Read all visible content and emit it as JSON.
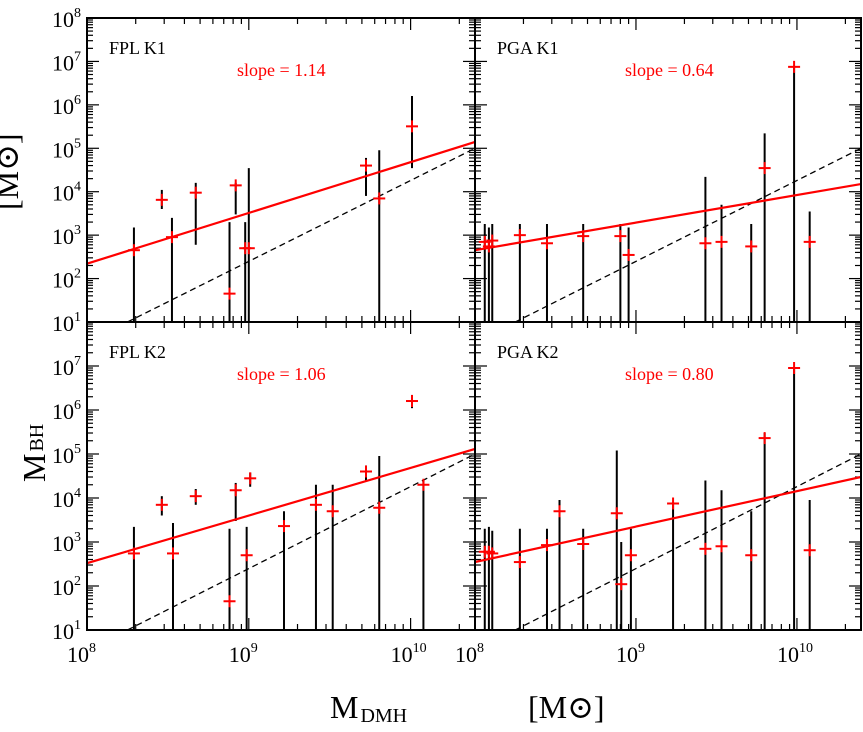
{
  "figure": {
    "ylabel_main": "M",
    "ylabel_sub": "BH",
    "yunit": "[M⊙]",
    "xlabel_main": "M",
    "xlabel_sub": "DMH",
    "xunit": "[M⊙]"
  },
  "colors": {
    "fit": "#ff0000",
    "data": "#ff0000",
    "errorbar": "#000000",
    "reference": "#000000"
  },
  "chart_data": [
    {
      "type": "scatter",
      "title": "FPL K1",
      "annotation": "slope = 1.14",
      "xscale": "log",
      "yscale": "log",
      "xlim": [
        100000000.0,
        25000000000.0
      ],
      "ylim": [
        10,
        100000000.0
      ],
      "fit": {
        "slope": 1.14,
        "points": [
          [
            100000000.0,
            220
          ],
          [
            25000000000.0,
            140000.0
          ]
        ]
      },
      "reference": {
        "points": [
          [
            178000000.0,
            10
          ],
          [
            25000000000.0,
            100000.0
          ]
        ]
      },
      "points": [
        {
          "x": 195000000.0,
          "y": 450,
          "ylo": 10,
          "yhi": 1500
        },
        {
          "x": 290000000.0,
          "y": 6500,
          "ylo": 4000,
          "yhi": 11000
        },
        {
          "x": 335000000.0,
          "y": 900,
          "ylo": 10,
          "yhi": 2500
        },
        {
          "x": 470000000.0,
          "y": 9500,
          "ylo": 600,
          "yhi": 16000
        },
        {
          "x": 760000000.0,
          "y": 45,
          "ylo": 10,
          "yhi": 2000
        },
        {
          "x": 830000000.0,
          "y": 14000,
          "ylo": 3000,
          "yhi": 16000
        },
        {
          "x": 950000000.0,
          "y": 500,
          "ylo": 10,
          "yhi": 2000
        },
        {
          "x": 1000000000.0,
          "y": 500,
          "ylo": 10,
          "yhi": 35000
        },
        {
          "x": 5300000000.0,
          "y": 40000,
          "ylo": 8000,
          "yhi": 60000
        },
        {
          "x": 6400000000.0,
          "y": 7000,
          "ylo": 10,
          "yhi": 90000
        },
        {
          "x": 10200000000.0,
          "y": 320000,
          "ylo": 35000,
          "yhi": 1600000
        }
      ]
    },
    {
      "type": "scatter",
      "title": "PGA K1",
      "annotation": "slope = 0.64",
      "xscale": "log",
      "yscale": "log",
      "xlim": [
        100000000.0,
        25000000000.0
      ],
      "ylim": [
        10,
        100000000.0
      ],
      "fit": {
        "slope": 0.64,
        "points": [
          [
            100000000.0,
            450
          ],
          [
            25000000000.0,
            15000
          ]
        ]
      },
      "reference": {
        "points": [
          [
            178000000.0,
            10
          ],
          [
            25000000000.0,
            100000.0
          ]
        ]
      },
      "points": [
        {
          "x": 115000000.0,
          "y": 700,
          "ylo": 10,
          "yhi": 1800
        },
        {
          "x": 122000000.0,
          "y": 550,
          "ylo": 10,
          "yhi": 1500
        },
        {
          "x": 128000000.0,
          "y": 750,
          "ylo": 10,
          "yhi": 1800
        },
        {
          "x": 190000000.0,
          "y": 1000,
          "ylo": 10,
          "yhi": 1800
        },
        {
          "x": 280000000.0,
          "y": 650,
          "ylo": 10,
          "yhi": 1800
        },
        {
          "x": 470000000.0,
          "y": 950,
          "ylo": 10,
          "yhi": 1800
        },
        {
          "x": 800000000.0,
          "y": 950,
          "ylo": 10,
          "yhi": 1800
        },
        {
          "x": 900000000.0,
          "y": 350,
          "ylo": 10,
          "yhi": 1500
        },
        {
          "x": 2700000000.0,
          "y": 650,
          "ylo": 10,
          "yhi": 22000
        },
        {
          "x": 3400000000.0,
          "y": 700,
          "ylo": 10,
          "yhi": 5000
        },
        {
          "x": 5200000000.0,
          "y": 550,
          "ylo": 10,
          "yhi": 1800
        },
        {
          "x": 6300000000.0,
          "y": 35000,
          "ylo": 10,
          "yhi": 220000
        },
        {
          "x": 9600000000.0,
          "y": 7500000,
          "ylo": 10,
          "yhi": 8000000
        },
        {
          "x": 12000000000.0,
          "y": 700,
          "ylo": 10,
          "yhi": 3500
        }
      ]
    },
    {
      "type": "scatter",
      "title": "FPL K2",
      "annotation": "slope = 1.06",
      "xscale": "log",
      "yscale": "log",
      "xlim": [
        100000000.0,
        25000000000.0
      ],
      "ylim": [
        10,
        100000000.0
      ],
      "fit": {
        "slope": 1.06,
        "points": [
          [
            100000000.0,
            330
          ],
          [
            25000000000.0,
            130000.0
          ]
        ]
      },
      "reference": {
        "points": [
          [
            178000000.0,
            10
          ],
          [
            25000000000.0,
            100000.0
          ]
        ]
      },
      "points": [
        {
          "x": 195000000.0,
          "y": 550,
          "ylo": 10,
          "yhi": 2200
        },
        {
          "x": 290000000.0,
          "y": 7000,
          "ylo": 4000,
          "yhi": 11000
        },
        {
          "x": 340000000.0,
          "y": 550,
          "ylo": 10,
          "yhi": 2700
        },
        {
          "x": 470000000.0,
          "y": 11000,
          "ylo": 7000,
          "yhi": 16000
        },
        {
          "x": 760000000.0,
          "y": 45,
          "ylo": 10,
          "yhi": 2000
        },
        {
          "x": 830000000.0,
          "y": 15000,
          "ylo": 3000,
          "yhi": 22000
        },
        {
          "x": 970000000.0,
          "y": 500,
          "ylo": 10,
          "yhi": 2200
        },
        {
          "x": 1020000000.0,
          "y": 28000,
          "ylo": 18000,
          "yhi": 38000
        },
        {
          "x": 1650000000.0,
          "y": 2300,
          "ylo": 10,
          "yhi": 5000
        },
        {
          "x": 2600000000.0,
          "y": 7000,
          "ylo": 10,
          "yhi": 20000
        },
        {
          "x": 3300000000.0,
          "y": 5000,
          "ylo": 10,
          "yhi": 20000
        },
        {
          "x": 5300000000.0,
          "y": 40000,
          "ylo": 25000,
          "yhi": 55000
        },
        {
          "x": 6400000000.0,
          "y": 6000,
          "ylo": 10,
          "yhi": 90000
        },
        {
          "x": 10200000000.0,
          "y": 1600000,
          "ylo": 1100000,
          "yhi": 2200000
        },
        {
          "x": 12000000000.0,
          "y": 20000,
          "ylo": 10,
          "yhi": 25000
        }
      ]
    },
    {
      "type": "scatter",
      "title": "PGA K2",
      "annotation": "slope = 0.80",
      "xscale": "log",
      "yscale": "log",
      "xlim": [
        100000000.0,
        25000000000.0
      ],
      "ylim": [
        10,
        100000000.0
      ],
      "fit": {
        "slope": 0.8,
        "points": [
          [
            100000000.0,
            350
          ],
          [
            25000000000.0,
            30000
          ]
        ]
      },
      "reference": {
        "points": [
          [
            178000000.0,
            10
          ],
          [
            25000000000.0,
            100000.0
          ]
        ]
      },
      "points": [
        {
          "x": 115000000.0,
          "y": 600,
          "ylo": 10,
          "yhi": 2000
        },
        {
          "x": 122000000.0,
          "y": 600,
          "ylo": 10,
          "yhi": 2200
        },
        {
          "x": 128000000.0,
          "y": 550,
          "ylo": 10,
          "yhi": 1800
        },
        {
          "x": 190000000.0,
          "y": 350,
          "ylo": 10,
          "yhi": 2000
        },
        {
          "x": 280000000.0,
          "y": 850,
          "ylo": 10,
          "yhi": 2000
        },
        {
          "x": 335000000.0,
          "y": 5000,
          "ylo": 10,
          "yhi": 9000
        },
        {
          "x": 470000000.0,
          "y": 900,
          "ylo": 10,
          "yhi": 2000
        },
        {
          "x": 760000000.0,
          "y": 4500,
          "ylo": 10,
          "yhi": 120000
        },
        {
          "x": 810000000.0,
          "y": 110,
          "ylo": 10,
          "yhi": 1000
        },
        {
          "x": 930000000.0,
          "y": 500,
          "ylo": 10,
          "yhi": 2000
        },
        {
          "x": 1700000000.0,
          "y": 7500,
          "ylo": 10,
          "yhi": 8000
        },
        {
          "x": 2700000000.0,
          "y": 700,
          "ylo": 10,
          "yhi": 25000
        },
        {
          "x": 3400000000.0,
          "y": 800,
          "ylo": 10,
          "yhi": 15000
        },
        {
          "x": 5200000000.0,
          "y": 500,
          "ylo": 10,
          "yhi": 5000
        },
        {
          "x": 6300000000.0,
          "y": 230000,
          "ylo": 10,
          "yhi": 300000
        },
        {
          "x": 9600000000.0,
          "y": 9000000,
          "ylo": 10,
          "yhi": 9500000
        },
        {
          "x": 12000000000.0,
          "y": 650,
          "ylo": 10,
          "yhi": 9000
        }
      ]
    }
  ]
}
